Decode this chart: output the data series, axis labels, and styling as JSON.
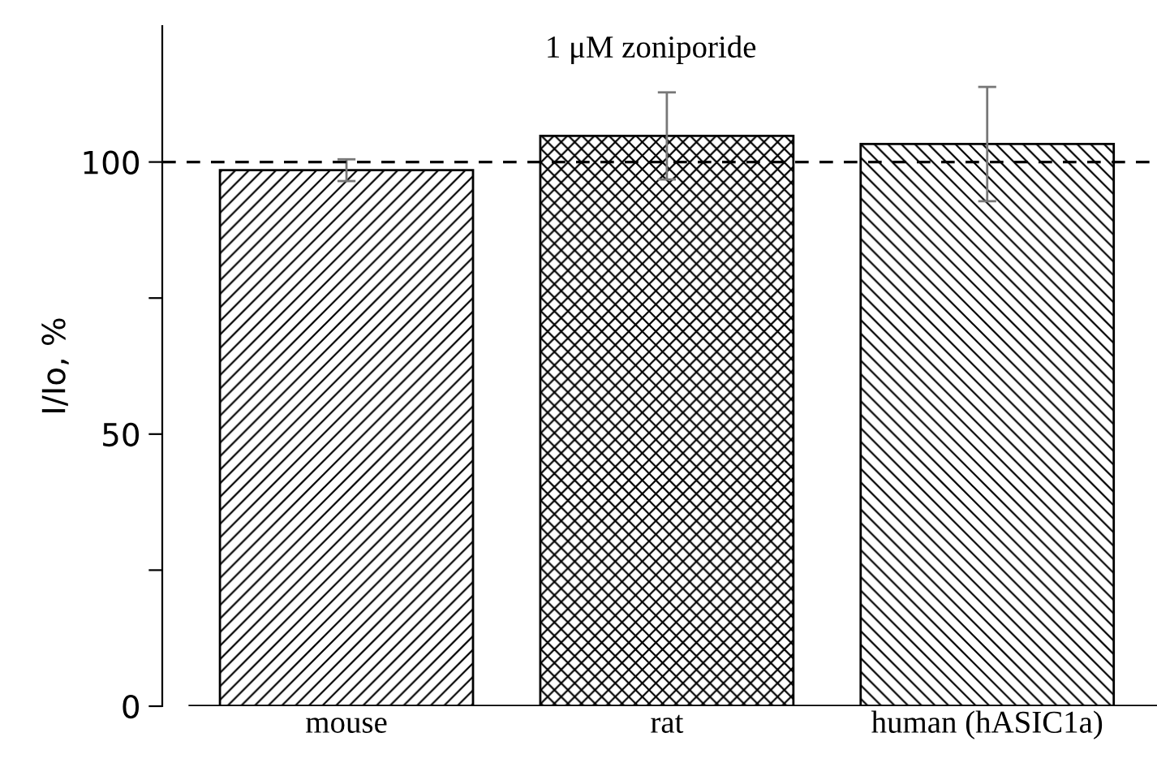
{
  "chart_data": {
    "type": "bar",
    "ylabel": "I/Io, %",
    "categories": [
      "mouse",
      "rat",
      "human (hASIC1a)"
    ],
    "values": [
      98.5,
      104.8,
      103.3
    ],
    "errors": [
      2,
      8,
      10.5
    ],
    "colors": [
      "#000000",
      "#000000",
      "#000000"
    ],
    "ylim": [
      0,
      125
    ],
    "yticks": [
      0,
      {
        "value": 25,
        "label": null
      },
      50,
      {
        "value": 75,
        "label": null
      },
      100
    ],
    "ref_lines": [
      {
        "axis": "y",
        "value": 100,
        "line_style": "dashed",
        "color": "#000000"
      }
    ],
    "annotations": [
      "1 μM zoniporide"
    ],
    "grid": false,
    "legend": false
  }
}
